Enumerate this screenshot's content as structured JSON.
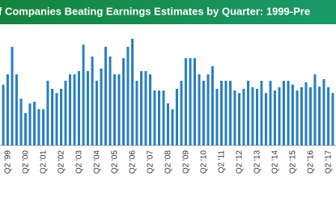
{
  "chart_data": {
    "type": "bar",
    "title": "f Companies Beating Earnings Estimates by Quarter: 1999-Pre",
    "categories": [
      null,
      "Q2 '99",
      null,
      null,
      null,
      "Q2 '00",
      null,
      null,
      null,
      "Q2 '01",
      null,
      null,
      null,
      "Q2 '02",
      null,
      null,
      null,
      "Q2 '03",
      null,
      null,
      null,
      "Q2 '04",
      null,
      null,
      null,
      "Q2 '05",
      null,
      null,
      null,
      "Q2 '06",
      null,
      null,
      null,
      "Q2 '07",
      null,
      null,
      null,
      "Q2 '08",
      null,
      null,
      null,
      "Q2 '09",
      null,
      null,
      null,
      "Q2 '10",
      null,
      null,
      null,
      "Q2 '11",
      null,
      null,
      null,
      "Q2 '12",
      null,
      null,
      null,
      "Q2 '13",
      null,
      null,
      null,
      "Q2 '14",
      null,
      null,
      null,
      "Q2 '15",
      null,
      null,
      null,
      "Q2 '16",
      null,
      null,
      null,
      "Q2 '17",
      null
    ],
    "values": [
      58.8,
      62,
      70.5,
      62,
      54.5,
      50,
      53,
      53.5,
      51.2,
      51.2,
      60,
      57.5,
      56.2,
      57.5,
      60,
      62,
      62,
      63,
      71.2,
      63,
      67.5,
      60,
      63.8,
      70.5,
      67.5,
      62,
      62,
      67,
      70.5,
      73,
      60,
      63,
      63,
      62,
      57,
      57,
      57,
      53,
      51.2,
      57.5,
      60,
      67,
      67,
      67,
      62,
      60,
      62,
      64.5,
      57.5,
      60,
      60,
      60,
      57,
      56.2,
      57.5,
      60,
      58,
      57.5,
      60,
      56.2,
      60,
      57,
      58,
      60,
      60,
      58.8,
      57,
      58,
      59.5,
      58,
      62,
      58.2,
      60.5,
      58,
      56.2
    ],
    "color": "#2a7fc0",
    "ylim": [
      40,
      75
    ]
  }
}
